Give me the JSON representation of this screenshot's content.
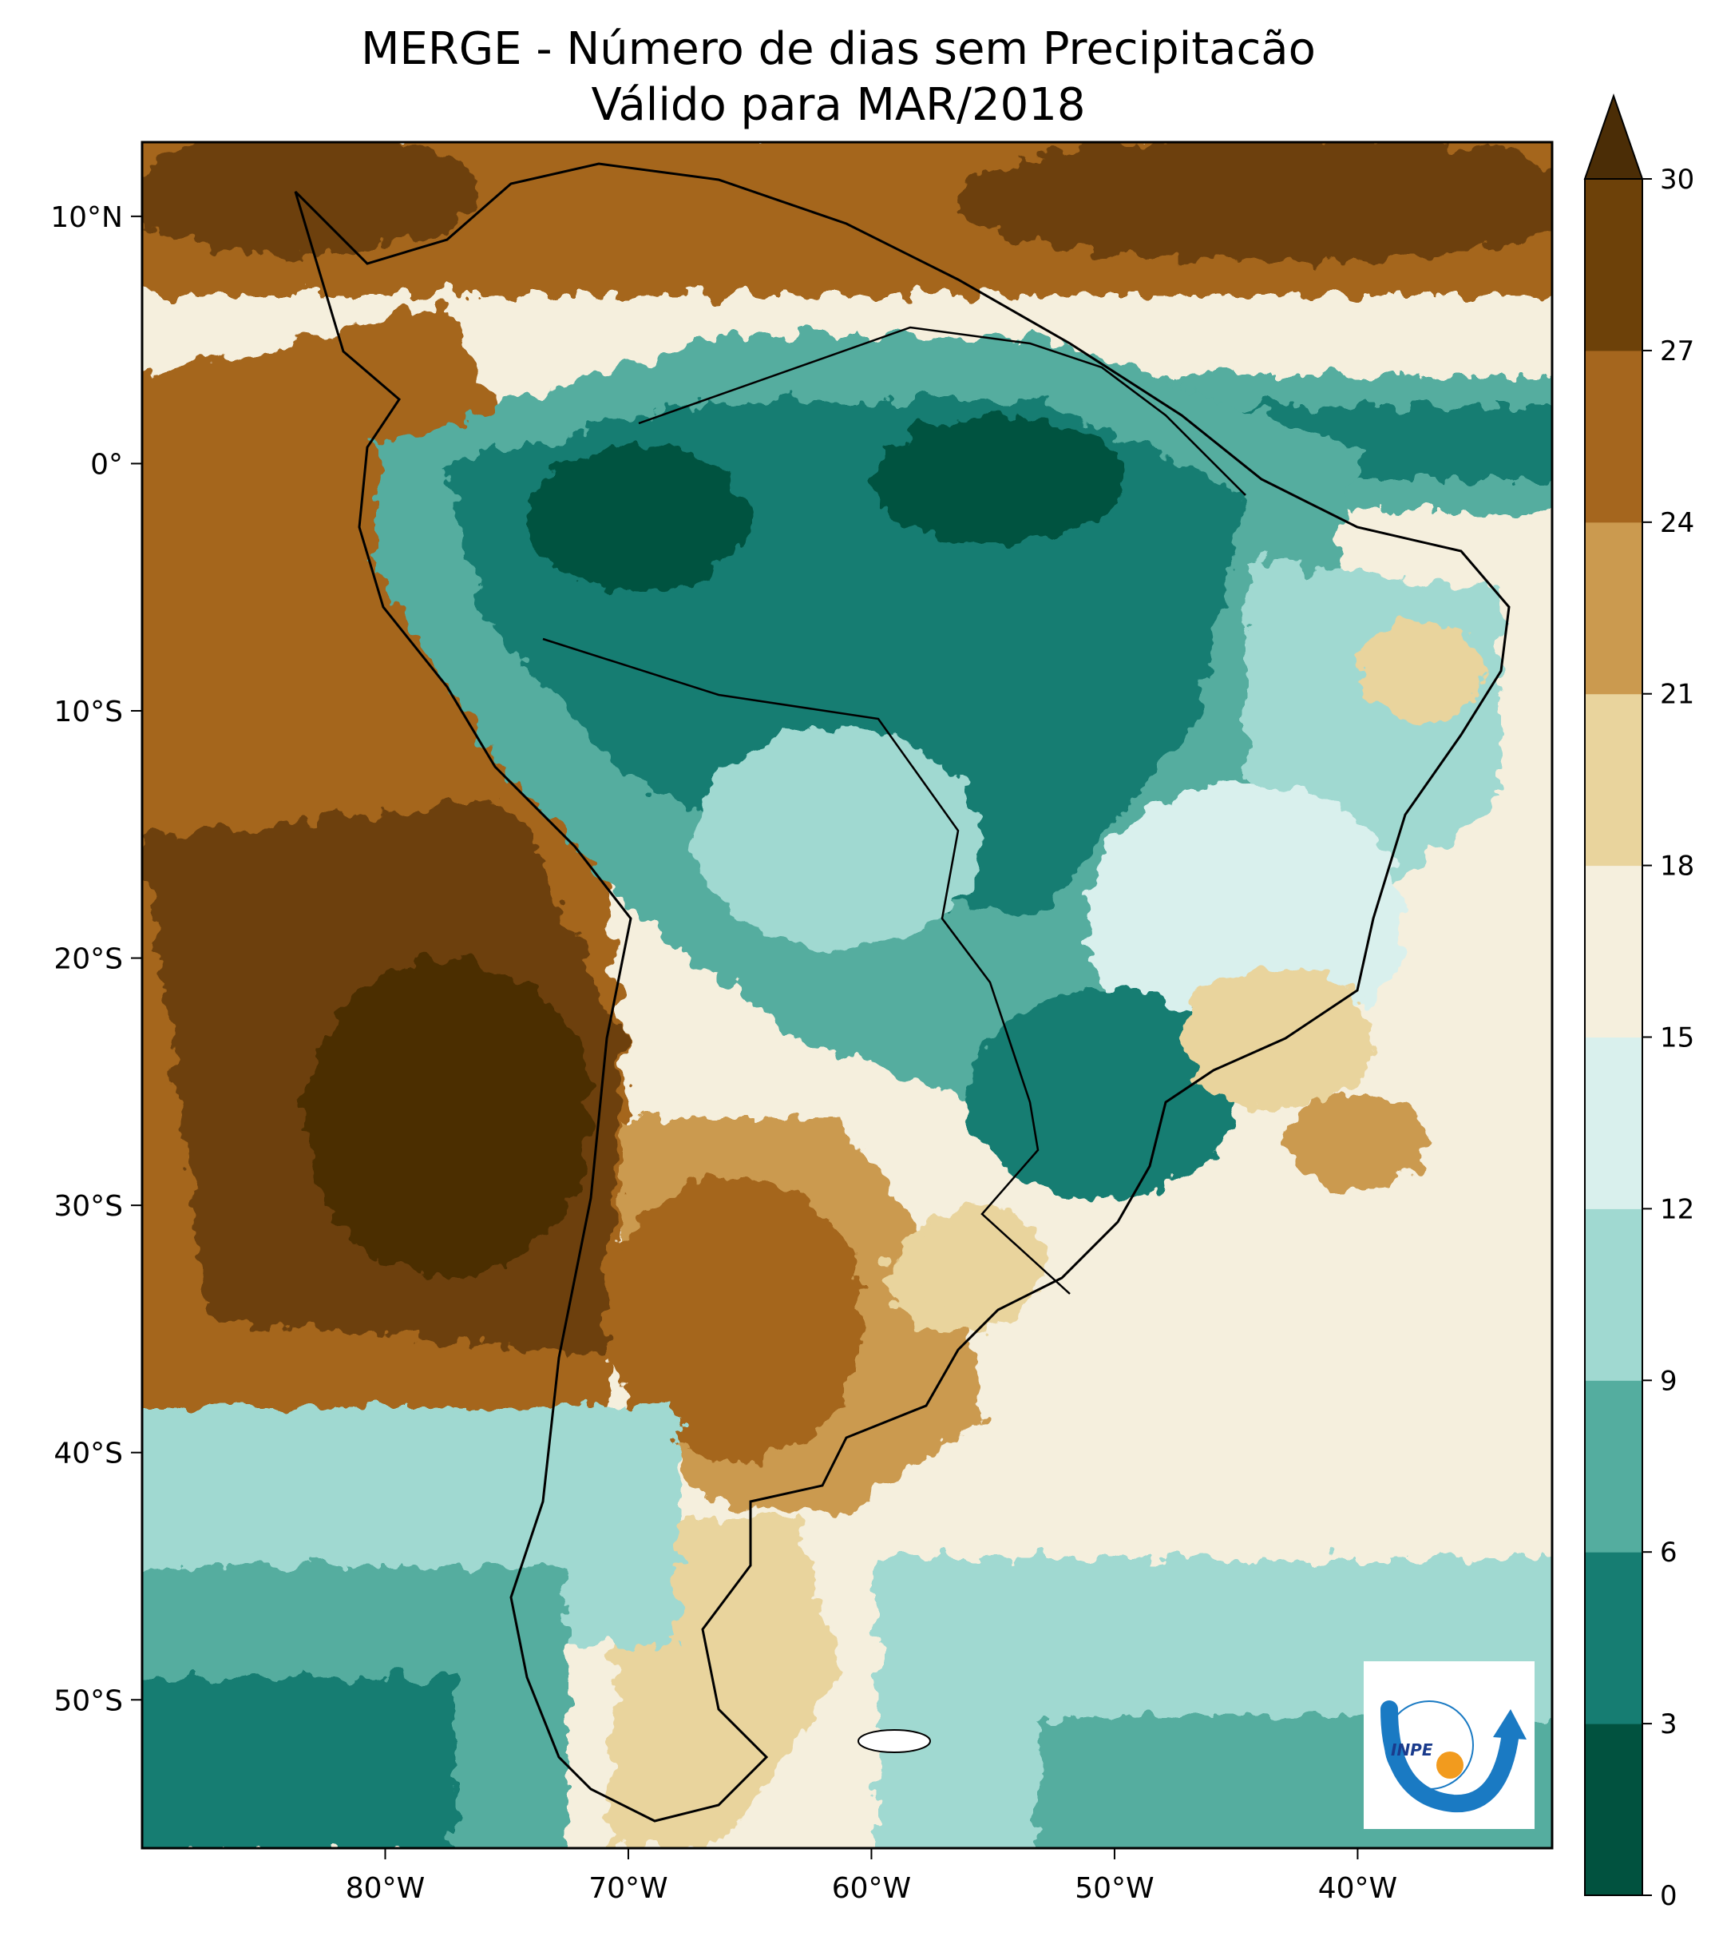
{
  "title_line1": "MERGE - Número de dias sem Precipitacão",
  "title_line2": "Válido para MAR/2018",
  "map": {
    "lon_ticks": [
      {
        "value": -80,
        "label": "80°W"
      },
      {
        "value": -70,
        "label": "70°W"
      },
      {
        "value": -60,
        "label": "60°W"
      },
      {
        "value": -50,
        "label": "50°W"
      },
      {
        "value": -40,
        "label": "40°W"
      }
    ],
    "lat_ticks": [
      {
        "value": 10,
        "label": "10°N"
      },
      {
        "value": 0,
        "label": "0°"
      },
      {
        "value": -10,
        "label": "10°S"
      },
      {
        "value": -20,
        "label": "20°S"
      },
      {
        "value": -30,
        "label": "30°S"
      },
      {
        "value": -40,
        "label": "40°S"
      },
      {
        "value": -50,
        "label": "50°S"
      }
    ],
    "lon_range": [
      -90,
      -32
    ],
    "lat_range": [
      -56,
      13
    ]
  },
  "colorbar": {
    "levels": [
      0,
      3,
      6,
      9,
      12,
      15,
      18,
      21,
      24,
      27,
      30
    ],
    "labels": [
      "0",
      "3",
      "6",
      "9",
      "12",
      "15",
      "18",
      "21",
      "24",
      "27",
      "30"
    ],
    "colors": [
      "#01523f",
      "#167d72",
      "#54ad9f",
      "#a0d9d1",
      "#d9f0ed",
      "#f5efdd",
      "#e9d49d",
      "#cb9a4f",
      "#a5661e",
      "#6d4109"
    ],
    "extend_color": "#4b2d06",
    "extend": "max"
  },
  "logo": {
    "text": "INPE",
    "arc_color": "#1a7ac3",
    "dot_color": "#f29b1e"
  }
}
